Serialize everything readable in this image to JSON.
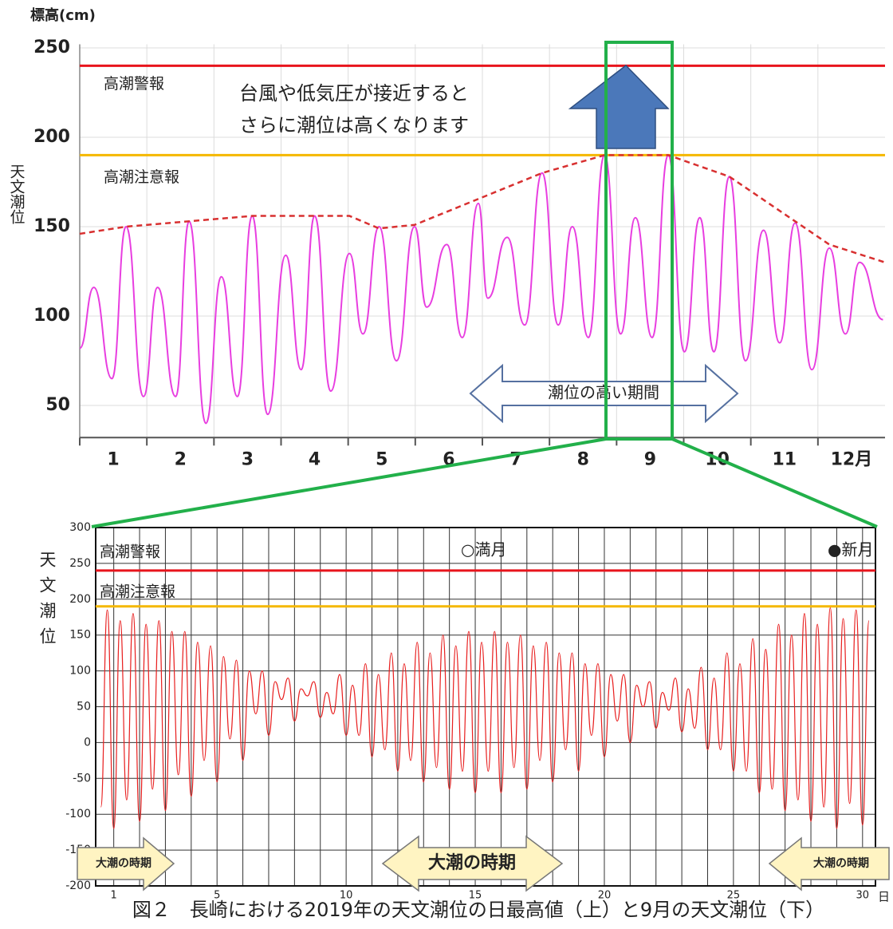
{
  "caption": "図２　長崎における2019年の天文潮位の日最高値（上）と9月の天文潮位（下）",
  "chart_data": [
    {
      "type": "line",
      "y_label": "標高(cm)",
      "y_title": "天文潮位",
      "categories": [
        "1",
        "2",
        "3",
        "4",
        "5",
        "6",
        "7",
        "8",
        "9",
        "10",
        "11",
        "12月"
      ],
      "xlim": [
        0,
        12
      ],
      "ylim": [
        32,
        252
      ],
      "yticks": [
        50,
        100,
        150,
        200,
        250
      ],
      "grid": true,
      "reference_lines": [
        {
          "label": "高潮警報",
          "value": 240,
          "color": "#e8141c"
        },
        {
          "label": "高潮注意報",
          "value": 190,
          "color": "#f5b800"
        }
      ],
      "annotations": [
        "台風や低気圧が接近すると",
        "さらに潮位は高くなります",
        "潮位の高い期間"
      ],
      "series": [
        {
          "color": "#e83ee0",
          "dashed": false,
          "x": [
            0,
            0.21,
            0.48,
            0.69,
            0.95,
            1.16,
            1.43,
            1.63,
            1.88,
            2.11,
            2.35,
            2.57,
            2.8,
            3.07,
            3.3,
            3.5,
            3.74,
            4.02,
            4.22,
            4.46,
            4.72,
            4.99,
            5.17,
            5.47,
            5.7,
            5.94,
            6.08,
            6.37,
            6.63,
            6.89,
            7.13,
            7.34,
            7.58,
            7.82,
            8.06,
            8.28,
            8.53,
            8.77,
            9.01,
            9.24,
            9.45,
            9.68,
            9.92,
            10.19,
            10.43,
            10.66,
            10.91,
            11.17,
            11.41,
            11.62,
            11.97
          ],
          "values": [
            82,
            116,
            65,
            150,
            55,
            116,
            55,
            153,
            40,
            122,
            55,
            156,
            45,
            134,
            70,
            156,
            58,
            135,
            90,
            150,
            75,
            150,
            105,
            140,
            88,
            163,
            110,
            144,
            95,
            180,
            95,
            150,
            88,
            190,
            90,
            155,
            88,
            190,
            80,
            155,
            80,
            178,
            75,
            148,
            85,
            152,
            70,
            138,
            90,
            130,
            98
          ]
        },
        {
          "color": "#d83030",
          "dashed": true,
          "x": [
            0,
            0.69,
            2.57,
            4.02,
            4.46,
            4.99,
            6.89,
            7.82,
            8.77,
            9.68,
            11.17,
            12
          ],
          "values": [
            146,
            150,
            156,
            156,
            149,
            151,
            180,
            190,
            190,
            178,
            140,
            130
          ]
        }
      ]
    },
    {
      "type": "line",
      "y_title": "天文潮位",
      "x_label": "日",
      "xlim": [
        0.3,
        30.5
      ],
      "ylim": [
        -200,
        300
      ],
      "xticks": [
        1,
        5,
        10,
        15,
        20,
        25,
        30
      ],
      "xminorticks": [
        1,
        2,
        3,
        4,
        5,
        6,
        7,
        8,
        9,
        10,
        11,
        12,
        13,
        14,
        15,
        16,
        17,
        18,
        19,
        20,
        21,
        22,
        23,
        24,
        25,
        26,
        27,
        28,
        29,
        30
      ],
      "yticks": [
        -200,
        -150,
        -100,
        -50,
        0,
        50,
        100,
        150,
        200,
        250,
        300
      ],
      "grid": true,
      "reference_lines": [
        {
          "label": "高潮警報",
          "value": 240,
          "color": "#e8141c"
        },
        {
          "label": "高潮注意報",
          "value": 190,
          "color": "#f5b800"
        }
      ],
      "annotations": [
        "○満月",
        "●新月",
        "大潮の時期",
        "大潮の時期",
        "大潮の時期"
      ],
      "series": [
        {
          "color": "#e82020",
          "dashed": false,
          "x": [
            0.5,
            0.75,
            1,
            1.25,
            1.5,
            1.75,
            2,
            2.25,
            2.5,
            2.75,
            3,
            3.25,
            3.5,
            3.75,
            4,
            4.25,
            4.5,
            4.75,
            5,
            5.25,
            5.5,
            5.75,
            6,
            6.25,
            6.5,
            6.75,
            7,
            7.25,
            7.5,
            7.75,
            8,
            8.25,
            8.5,
            8.75,
            9,
            9.25,
            9.5,
            9.75,
            10,
            10.25,
            10.5,
            10.75,
            11,
            11.25,
            11.5,
            11.75,
            12,
            12.25,
            12.5,
            12.75,
            13,
            13.25,
            13.5,
            13.75,
            14,
            14.25,
            14.5,
            14.75,
            15,
            15.25,
            15.5,
            15.75,
            16,
            16.25,
            16.5,
            16.75,
            17,
            17.25,
            17.5,
            17.75,
            18,
            18.25,
            18.5,
            18.75,
            19,
            19.25,
            19.5,
            19.75,
            20,
            20.25,
            20.5,
            20.75,
            21,
            21.25,
            21.5,
            21.75,
            22,
            22.25,
            22.5,
            22.75,
            23,
            23.25,
            23.5,
            23.75,
            24,
            24.25,
            24.5,
            24.75,
            25,
            25.25,
            25.5,
            25.75,
            26,
            26.25,
            26.5,
            26.75,
            27,
            27.25,
            27.5,
            27.75,
            28,
            28.25,
            28.5,
            28.75,
            29,
            29.25,
            29.5,
            29.75,
            30,
            30.25
          ],
          "values": [
            -90,
            185,
            -120,
            170,
            -80,
            180,
            -110,
            165,
            -65,
            170,
            -95,
            155,
            -45,
            155,
            -75,
            140,
            -25,
            135,
            -55,
            120,
            5,
            115,
            -25,
            100,
            40,
            100,
            10,
            85,
            60,
            90,
            30,
            75,
            65,
            85,
            35,
            70,
            40,
            95,
            10,
            80,
            10,
            110,
            -20,
            95,
            -10,
            125,
            -40,
            110,
            -25,
            140,
            -55,
            125,
            -35,
            150,
            -65,
            135,
            -40,
            155,
            -70,
            140,
            -40,
            155,
            -70,
            140,
            -35,
            150,
            -65,
            135,
            -25,
            140,
            -55,
            125,
            -10,
            125,
            -40,
            110,
            10,
            110,
            -20,
            95,
            30,
            95,
            0,
            80,
            50,
            85,
            20,
            70,
            45,
            90,
            15,
            75,
            20,
            105,
            -10,
            90,
            -10,
            125,
            -40,
            110,
            -40,
            145,
            -70,
            130,
            -65,
            165,
            -95,
            150,
            -80,
            180,
            -110,
            165,
            -90,
            188,
            -120,
            173,
            -85,
            185,
            -115,
            170
          ]
        }
      ]
    }
  ]
}
